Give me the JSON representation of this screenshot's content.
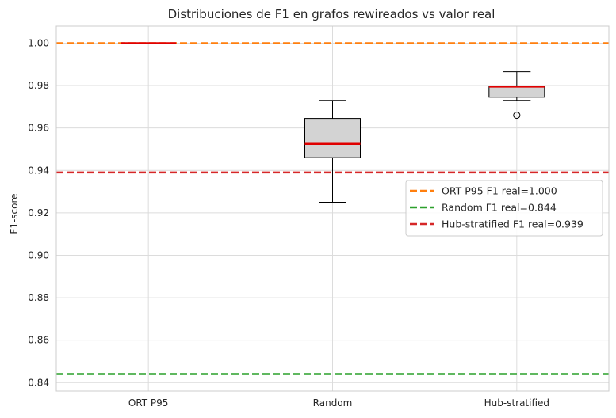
{
  "chart_data": {
    "type": "box",
    "title": "Distribuciones de F1 en grafos rewireados vs valor real",
    "xlabel": "",
    "ylabel": "F1-score",
    "ylim": [
      0.836,
      1.008
    ],
    "yticks": [
      "0.84",
      "0.86",
      "0.88",
      "0.90",
      "0.92",
      "0.94",
      "0.96",
      "0.98",
      "1.00"
    ],
    "grid": true,
    "legend_position": "center-right",
    "categories": [
      "ORT P95",
      "Random",
      "Hub-stratified"
    ],
    "boxes": [
      {
        "category": "ORT P95",
        "whisker_low": 1.0,
        "q1": 1.0,
        "median": 1.0,
        "q3": 1.0,
        "whisker_high": 1.0,
        "outliers": []
      },
      {
        "category": "Random",
        "whisker_low": 0.925,
        "q1": 0.946,
        "median": 0.9525,
        "q3": 0.9645,
        "whisker_high": 0.973,
        "outliers": []
      },
      {
        "category": "Hub-stratified",
        "whisker_low": 0.973,
        "q1": 0.9745,
        "median": 0.9795,
        "q3": 0.9798,
        "whisker_high": 0.9865,
        "outliers": [
          0.966
        ]
      }
    ],
    "reference_lines": [
      {
        "label": "ORT P95 F1 real=1.000",
        "value": 1.0,
        "color": "#ff7f0e"
      },
      {
        "label": "Random F1 real=0.844",
        "value": 0.844,
        "color": "#2ca02c"
      },
      {
        "label": "Hub-stratified F1 real=0.939",
        "value": 0.939,
        "color": "#d62728"
      }
    ],
    "colors": {
      "box_fill": "#d3d3d3",
      "box_edge": "#000000",
      "median": "#e00000",
      "grid": "#dcdcdc",
      "spine": "#cccccc"
    }
  }
}
